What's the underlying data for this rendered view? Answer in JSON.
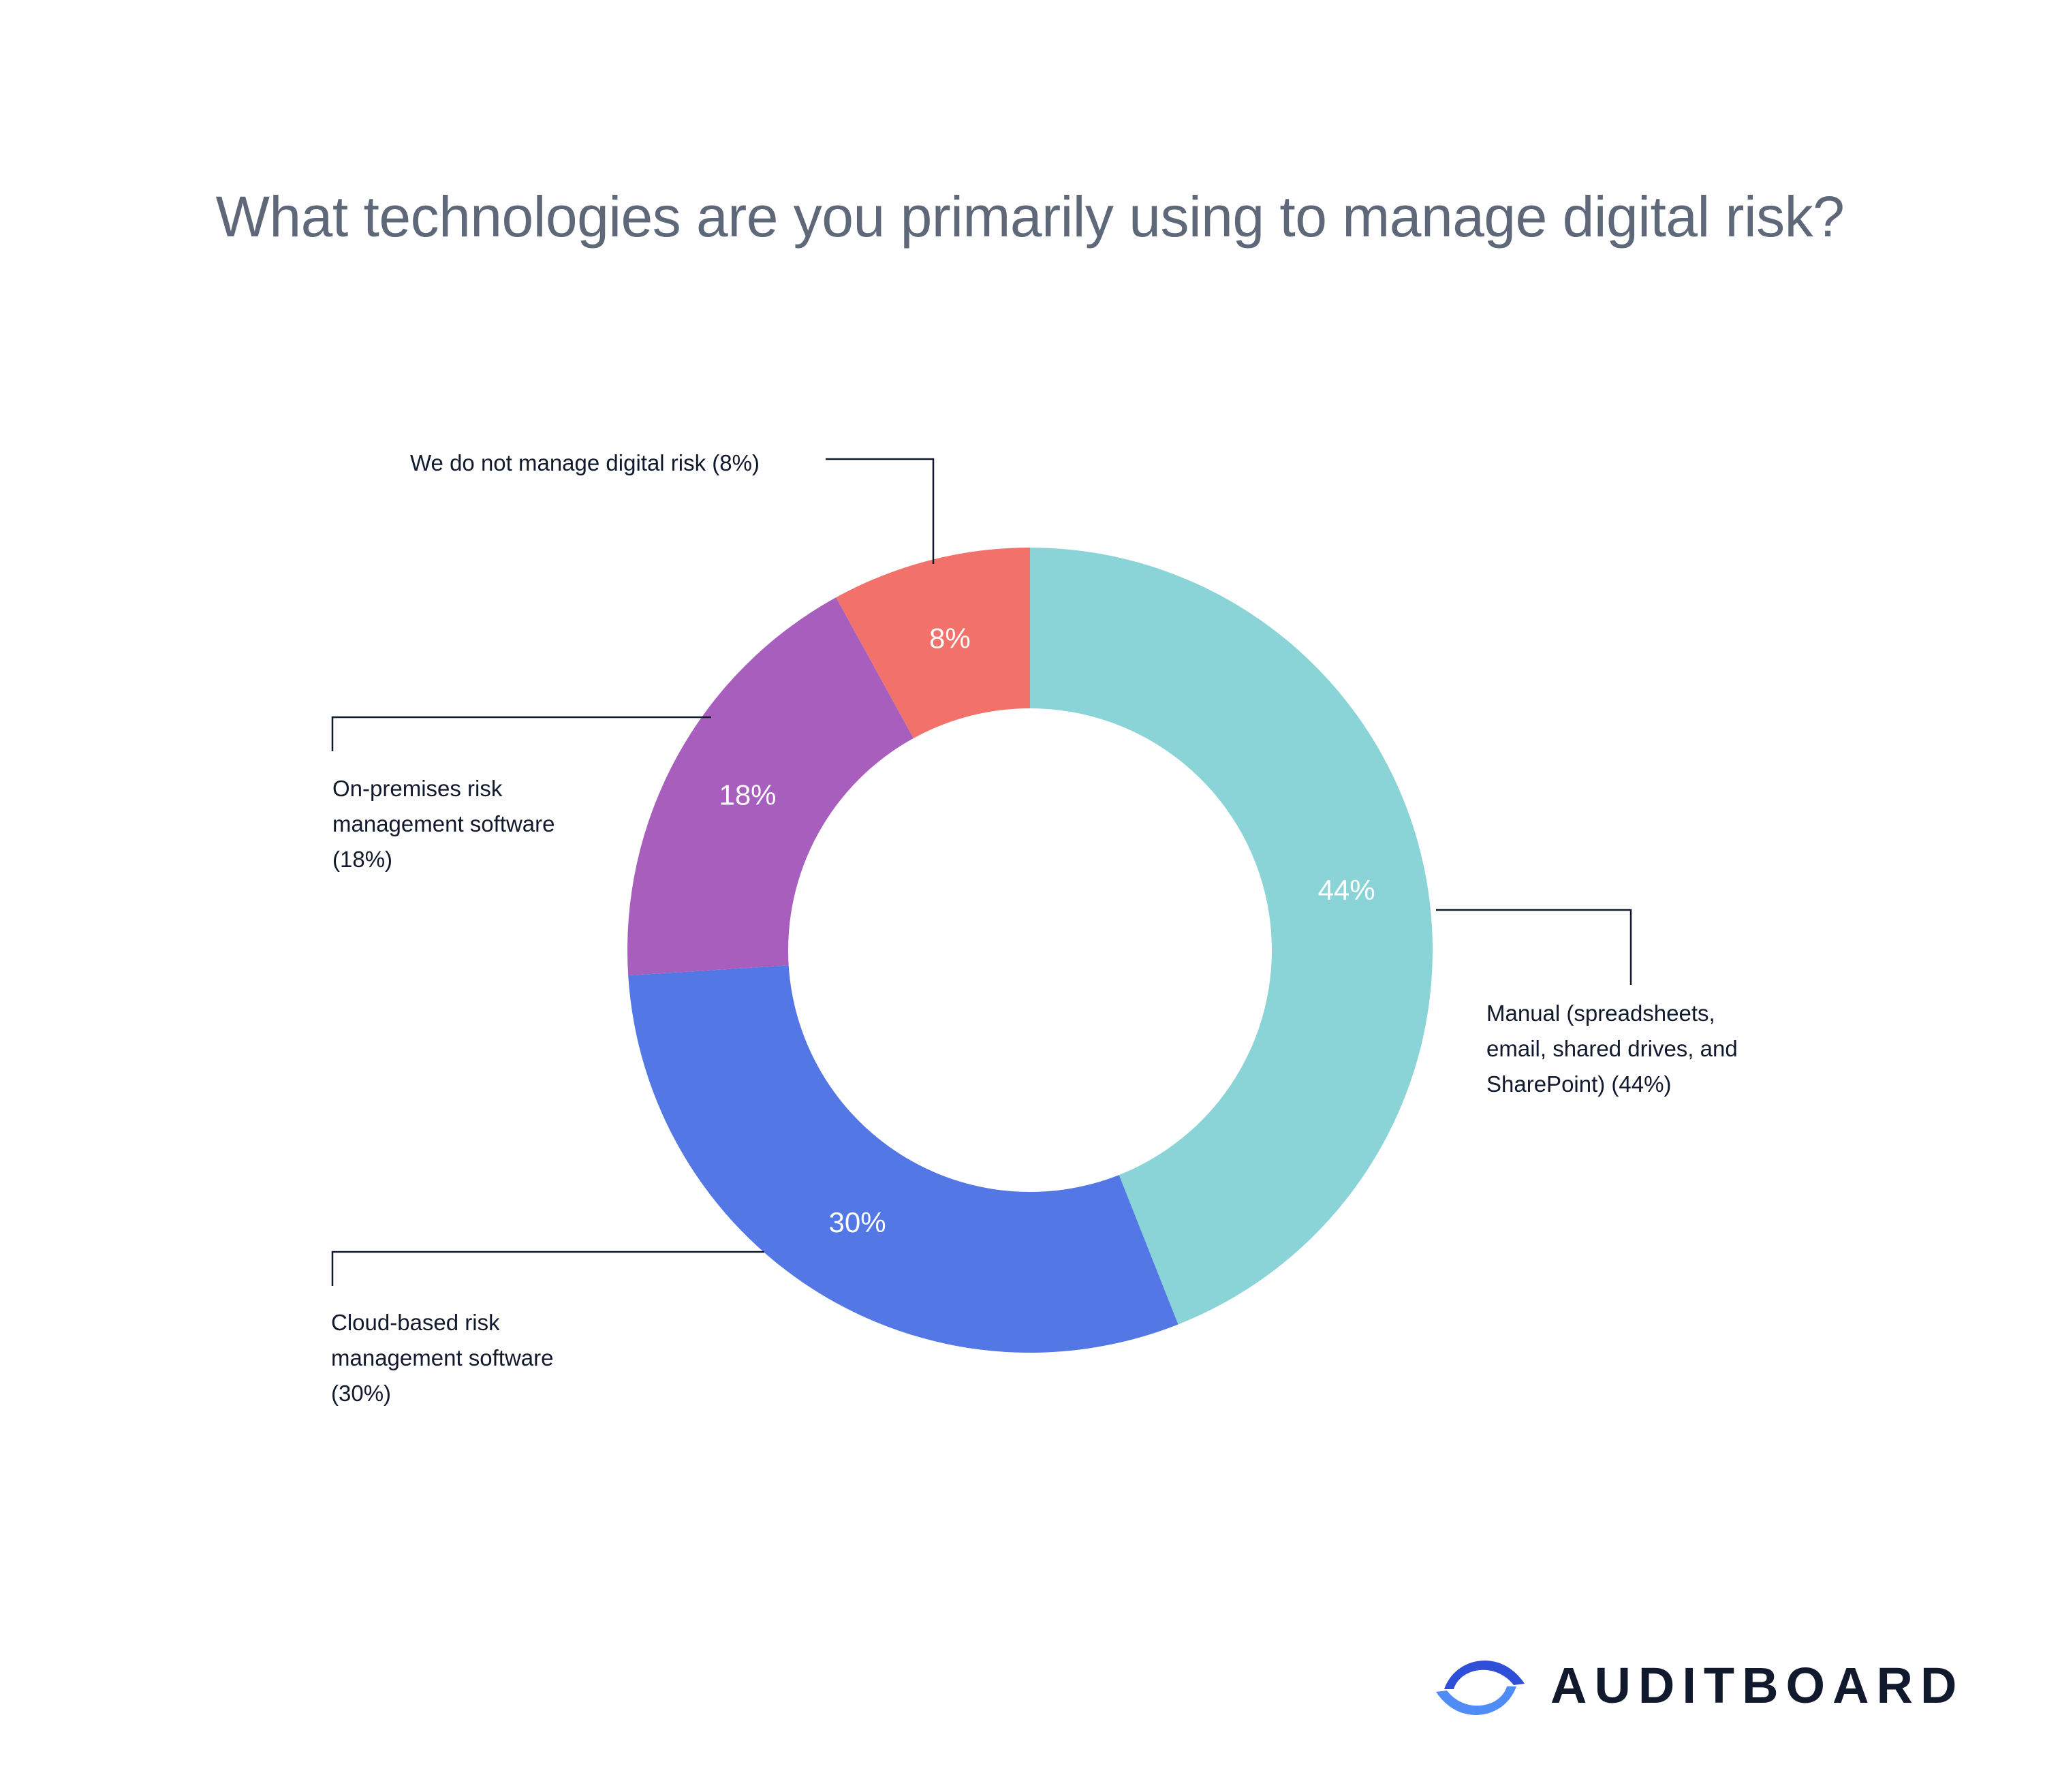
{
  "chart_data": {
    "type": "pie",
    "title": "What technologies are you primarily using to manage digital risk?",
    "slices": [
      {
        "label": "Manual (spreadsheets, email, shared drives, and SharePoint)",
        "value": 44,
        "value_label": "44%",
        "color": "#8ad4d8",
        "callout": [
          "Manual (spreadsheets,",
          "email, shared drives, and",
          "SharePoint) (44%)"
        ]
      },
      {
        "label": "Cloud-based risk management software",
        "value": 30,
        "value_label": "30%",
        "color": "#5377e5",
        "callout": [
          "Cloud-based risk",
          "management software",
          "(30%)"
        ]
      },
      {
        "label": "On-premises risk management software",
        "value": 18,
        "value_label": "18%",
        "color": "#a85ebd",
        "callout": [
          "On-premises risk",
          "management software",
          "(18%)"
        ]
      },
      {
        "label": "We do not manage digital risk",
        "value": 8,
        "value_label": "8%",
        "color": "#f2726b",
        "callout": [
          "We do not manage digital risk (8%)"
        ]
      }
    ]
  },
  "logo": {
    "text": "AUDITBOARD",
    "color": "#3b6ff0"
  }
}
